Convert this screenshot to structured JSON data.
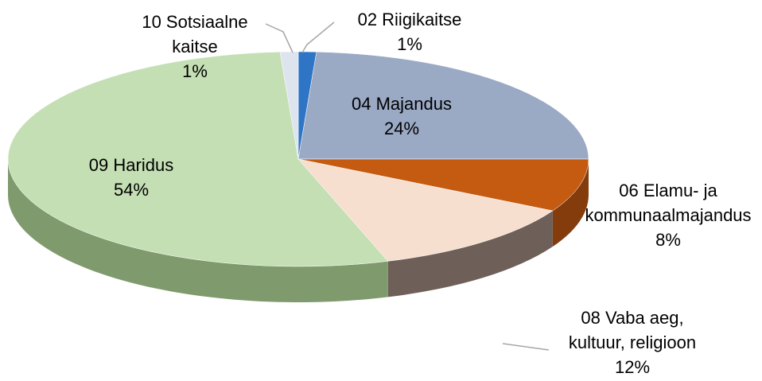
{
  "chart_data": {
    "type": "pie3d",
    "categories": [
      "02 Riigikaitse",
      "04 Majandus",
      "06 Elamu- ja kommunaalmajandus",
      "08 Vaba aeg, kultuur, religioon",
      "09 Haridus",
      "10 Sotsiaalne kaitse"
    ],
    "values": [
      1,
      24,
      8,
      12,
      54,
      1
    ],
    "value_labels": [
      "1%",
      "24%",
      "8%",
      "12%",
      "54%",
      "1%"
    ],
    "colors": [
      "#2e75c6",
      "#9aa9c4",
      "#c55a11",
      "#f7dfd0",
      "#c5dfb4",
      "#dde4ee"
    ],
    "side_colors": [
      "#1f4f86",
      "#66728a",
      "#843c0c",
      "#6e5f58",
      "#7f9a6c",
      "#9aa1ab"
    ]
  }
}
